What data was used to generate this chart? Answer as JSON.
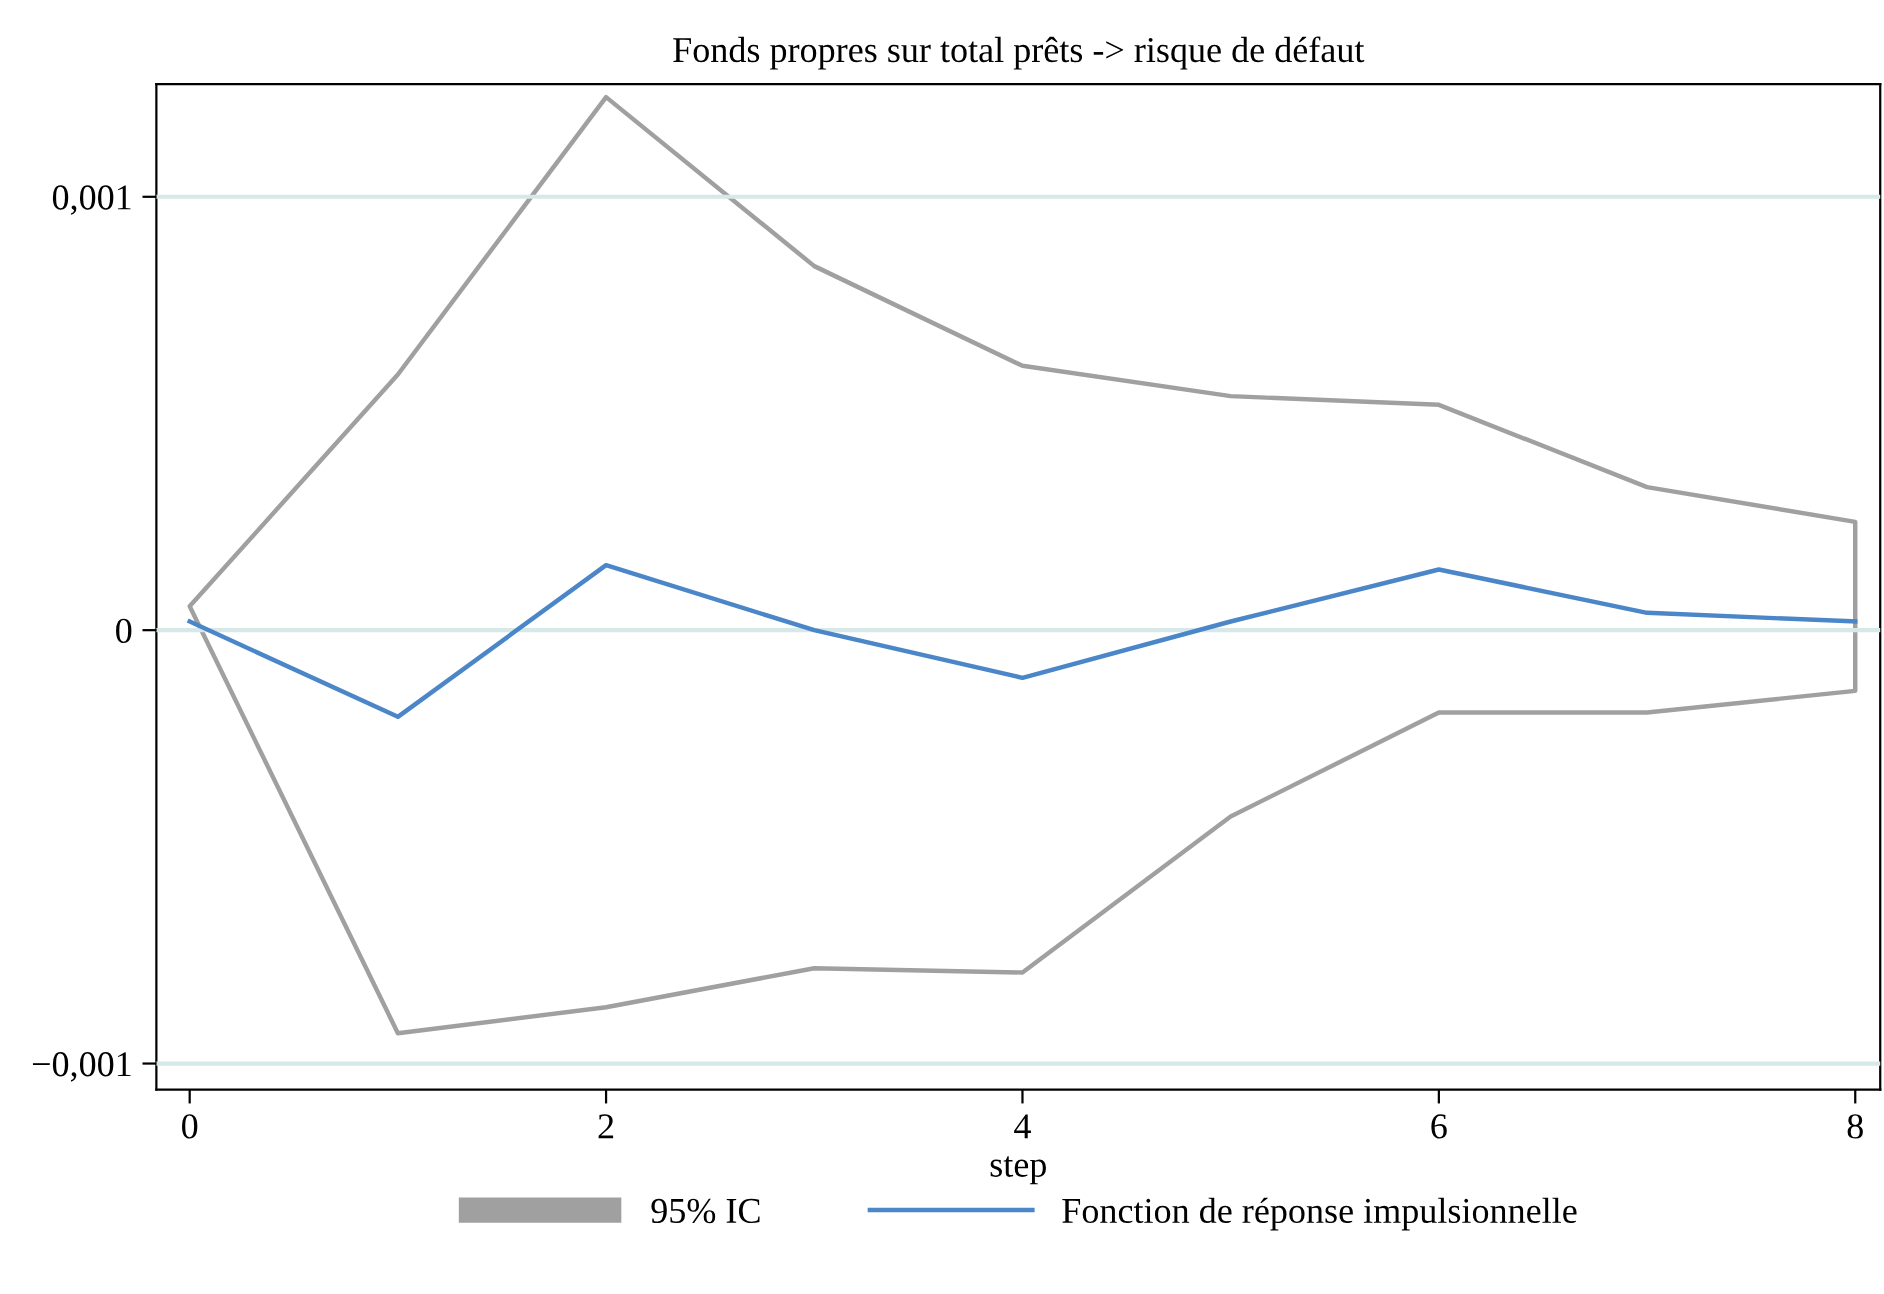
{
  "chart_data": {
    "type": "line",
    "title": "Fonds propres sur total prêts -> risque de défaut",
    "xlabel": "step",
    "x": [
      0,
      1,
      2,
      3,
      4,
      5,
      6,
      7,
      8
    ],
    "series": [
      {
        "name": "95% IC",
        "type": "area",
        "color": "#a0a0a0",
        "values": [
          null,
          null,
          null,
          null,
          null,
          null,
          null,
          null,
          null
        ],
        "lower": [
          5.5e-05,
          -0.00093,
          -0.00087,
          -0.00078,
          -0.00079,
          -0.00043,
          -0.00019,
          -0.00019,
          -0.00014
        ],
        "upper": [
          5.5e-05,
          0.00059,
          0.00123,
          0.00084,
          0.00061,
          0.00054,
          0.00052,
          0.00033,
          0.00025
        ]
      },
      {
        "name": "Fonction de réponse impulsionnelle",
        "color": "#4a86c8",
        "values": [
          2e-05,
          -0.0002,
          0.00015,
          0.0,
          -0.00011,
          2e-05,
          0.00014,
          4e-05,
          2e-05
        ]
      }
    ],
    "xlim": [
      -0.16,
      8.12
    ],
    "xticks": [
      0,
      2,
      4,
      6,
      8
    ],
    "ylim": [
      -0.00106,
      0.00126
    ],
    "yticks": [
      {
        "value": -0.001,
        "label": "−0,001"
      },
      0,
      {
        "value": 0.001,
        "label": "0,001"
      }
    ],
    "grid": "y",
    "legend": "bottom"
  }
}
